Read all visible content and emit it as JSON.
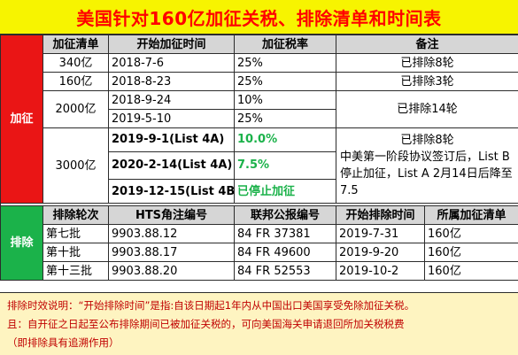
{
  "title": "美国针对160亿加征关税、排除清单和时间表",
  "tariff_side_label": "加征",
  "exclusion_side_label": "排除",
  "tariff_headers": [
    "加征清单",
    "开始加征时间",
    "加征税率",
    "备注"
  ],
  "tariff_rows": {
    "r340": {
      "list": "340亿",
      "date": "2018-7-6",
      "rate": "25%",
      "note": "已排除8轮"
    },
    "r160": {
      "list": "160亿",
      "date": "2018-8-23",
      "rate": "25%",
      "note": "已排除3轮"
    },
    "r2000": {
      "list": "2000亿",
      "date1": "2018-9-24",
      "rate1": "10%",
      "date2": "2019-5-10",
      "rate2": "25%",
      "note": "已排除14轮"
    },
    "r3000": {
      "list": "3000亿",
      "date1": "2019-9-1(List 4A)",
      "rate1": "10.0%",
      "date2": "2020-2-14(List 4A)",
      "rate2": "7.5%",
      "date3": "2019-12-15(List 4B)",
      "rate3": "已停止加征",
      "note": "已排除8轮\n中美第一阶段协议签订后，List B停止加征，List A 2月14日后降至7.5"
    }
  },
  "exclusion_headers": [
    "排除轮次",
    "HTS角注编号",
    "联邦公报编号",
    "开始排除时间",
    "所属加征清单"
  ],
  "exclusion_rows": [
    {
      "round": "第七批",
      "hts": "9903.88.12",
      "fr": "84 FR 37381",
      "start": "2019-7-31",
      "list": "160亿"
    },
    {
      "round": "第十批",
      "hts": "9903.88.17",
      "fr": "84 FR 49600",
      "start": "2019-9-20",
      "list": "160亿"
    },
    {
      "round": "第十三批",
      "hts": "9903.88.20",
      "fr": "84 FR 52553",
      "start": "2019-10-2",
      "list": "160亿"
    }
  ],
  "footer": {
    "line1": "排除时效说明：“开始排除时间”是指:自该日期起1年内从中国出口美国享受免除加征关税。",
    "line2": "且：自开征之日起至公布排除期间已被加征关税的，可向美国海关申请退回所加关税税费",
    "line3": "（即排除具有追溯作用）"
  },
  "colors": {
    "title_bg": "#f7f400",
    "title_text": "#ff0000",
    "tariff_side": "#ea1515",
    "exclusion_side": "#1bb24a",
    "header_bg": "#d6d6d6",
    "footer_bg": "#fef4c1",
    "footer_text": "#c00000",
    "rate_green": "#1bb24a"
  }
}
